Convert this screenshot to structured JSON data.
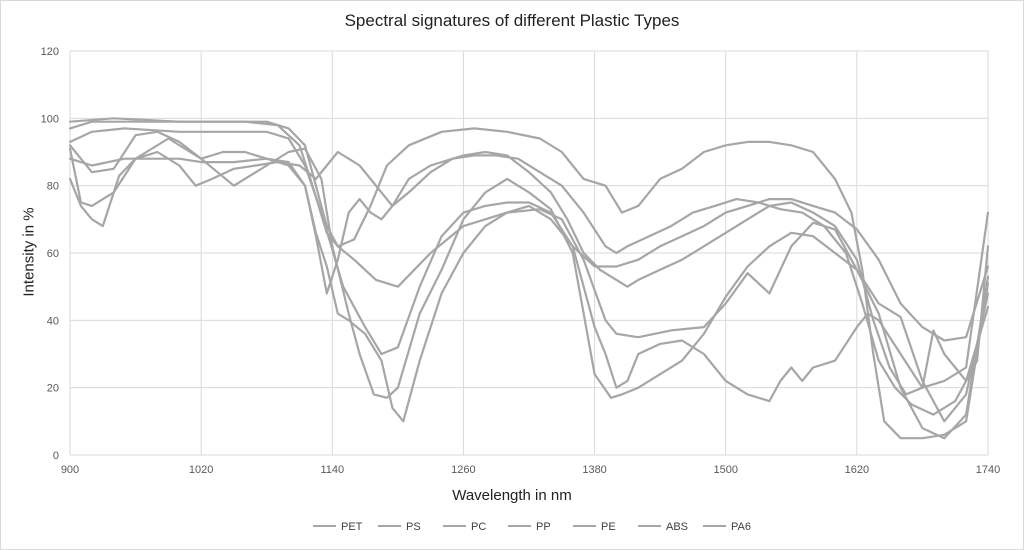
{
  "chart_data": {
    "type": "line",
    "title": "Spectral signatures of  different Plastic Types",
    "xlabel": "Wavelength in nm",
    "ylabel": "Intensity in %",
    "xlim": [
      900,
      1740
    ],
    "ylim": [
      0,
      120
    ],
    "xticks": [
      900,
      1020,
      1140,
      1260,
      1380,
      1500,
      1620,
      1740
    ],
    "yticks": [
      0,
      20,
      40,
      60,
      80,
      100,
      120
    ],
    "grid": true,
    "legend_position": "bottom",
    "line_color": "#a6a6a6",
    "series": [
      {
        "name": "PET",
        "points": [
          [
            900,
            99
          ],
          [
            940,
            100
          ],
          [
            1000,
            99
          ],
          [
            1060,
            99
          ],
          [
            1090,
            98
          ],
          [
            1110,
            92
          ],
          [
            1120,
            82
          ],
          [
            1135,
            66
          ],
          [
            1145,
            62
          ],
          [
            1160,
            58
          ],
          [
            1180,
            52
          ],
          [
            1200,
            50
          ],
          [
            1230,
            60
          ],
          [
            1260,
            68
          ],
          [
            1300,
            72
          ],
          [
            1330,
            73
          ],
          [
            1350,
            70
          ],
          [
            1370,
            58
          ],
          [
            1390,
            40
          ],
          [
            1400,
            36
          ],
          [
            1420,
            35
          ],
          [
            1450,
            37
          ],
          [
            1480,
            38
          ],
          [
            1500,
            45
          ],
          [
            1520,
            54
          ],
          [
            1540,
            48
          ],
          [
            1560,
            62
          ],
          [
            1580,
            69
          ],
          [
            1600,
            67
          ],
          [
            1620,
            55
          ],
          [
            1640,
            45
          ],
          [
            1660,
            41
          ],
          [
            1680,
            22
          ],
          [
            1700,
            10
          ],
          [
            1720,
            18
          ],
          [
            1740,
            48
          ]
        ]
      },
      {
        "name": "PS",
        "points": [
          [
            900,
            91
          ],
          [
            910,
            75
          ],
          [
            920,
            74
          ],
          [
            940,
            78
          ],
          [
            960,
            88
          ],
          [
            990,
            94
          ],
          [
            1020,
            88
          ],
          [
            1050,
            80
          ],
          [
            1080,
            86
          ],
          [
            1100,
            90
          ],
          [
            1115,
            91
          ],
          [
            1130,
            82
          ],
          [
            1140,
            62
          ],
          [
            1155,
            42
          ],
          [
            1165,
            30
          ],
          [
            1178,
            18
          ],
          [
            1190,
            17
          ],
          [
            1200,
            20
          ],
          [
            1220,
            42
          ],
          [
            1240,
            55
          ],
          [
            1260,
            70
          ],
          [
            1280,
            78
          ],
          [
            1300,
            82
          ],
          [
            1320,
            78
          ],
          [
            1340,
            73
          ],
          [
            1360,
            60
          ],
          [
            1380,
            24
          ],
          [
            1395,
            17
          ],
          [
            1405,
            18
          ],
          [
            1420,
            20
          ],
          [
            1440,
            24
          ],
          [
            1460,
            28
          ],
          [
            1480,
            36
          ],
          [
            1500,
            47
          ],
          [
            1520,
            56
          ],
          [
            1540,
            62
          ],
          [
            1560,
            66
          ],
          [
            1580,
            65
          ],
          [
            1600,
            60
          ],
          [
            1620,
            55
          ],
          [
            1640,
            42
          ],
          [
            1660,
            20
          ],
          [
            1680,
            8
          ],
          [
            1700,
            5
          ],
          [
            1720,
            12
          ],
          [
            1740,
            53
          ]
        ]
      },
      {
        "name": "PC",
        "points": [
          [
            900,
            93
          ],
          [
            920,
            96
          ],
          [
            950,
            97
          ],
          [
            1000,
            96
          ],
          [
            1040,
            96
          ],
          [
            1080,
            96
          ],
          [
            1100,
            94
          ],
          [
            1115,
            86
          ],
          [
            1130,
            72
          ],
          [
            1150,
            50
          ],
          [
            1170,
            38
          ],
          [
            1185,
            30
          ],
          [
            1200,
            32
          ],
          [
            1220,
            50
          ],
          [
            1240,
            65
          ],
          [
            1260,
            72
          ],
          [
            1280,
            74
          ],
          [
            1300,
            75
          ],
          [
            1320,
            75
          ],
          [
            1340,
            72
          ],
          [
            1360,
            62
          ],
          [
            1380,
            56
          ],
          [
            1400,
            56
          ],
          [
            1420,
            58
          ],
          [
            1440,
            62
          ],
          [
            1460,
            65
          ],
          [
            1480,
            68
          ],
          [
            1500,
            72
          ],
          [
            1520,
            74
          ],
          [
            1540,
            76
          ],
          [
            1560,
            76
          ],
          [
            1580,
            74
          ],
          [
            1600,
            72
          ],
          [
            1620,
            67
          ],
          [
            1640,
            58
          ],
          [
            1660,
            45
          ],
          [
            1680,
            38
          ],
          [
            1700,
            34
          ],
          [
            1720,
            35
          ],
          [
            1740,
            56
          ]
        ]
      },
      {
        "name": "PP",
        "points": [
          [
            900,
            97
          ],
          [
            920,
            99
          ],
          [
            960,
            99
          ],
          [
            1000,
            99
          ],
          [
            1040,
            99
          ],
          [
            1080,
            99
          ],
          [
            1100,
            97
          ],
          [
            1115,
            92
          ],
          [
            1125,
            80
          ],
          [
            1135,
            68
          ],
          [
            1145,
            62
          ],
          [
            1160,
            64
          ],
          [
            1175,
            74
          ],
          [
            1190,
            86
          ],
          [
            1210,
            92
          ],
          [
            1240,
            96
          ],
          [
            1270,
            97
          ],
          [
            1300,
            96
          ],
          [
            1330,
            94
          ],
          [
            1350,
            90
          ],
          [
            1370,
            82
          ],
          [
            1390,
            80
          ],
          [
            1405,
            72
          ],
          [
            1420,
            74
          ],
          [
            1440,
            82
          ],
          [
            1460,
            85
          ],
          [
            1480,
            90
          ],
          [
            1500,
            92
          ],
          [
            1520,
            93
          ],
          [
            1540,
            93
          ],
          [
            1560,
            92
          ],
          [
            1580,
            90
          ],
          [
            1600,
            82
          ],
          [
            1615,
            72
          ],
          [
            1625,
            55
          ],
          [
            1635,
            30
          ],
          [
            1645,
            10
          ],
          [
            1660,
            5
          ],
          [
            1680,
            5
          ],
          [
            1700,
            6
          ],
          [
            1720,
            10
          ],
          [
            1740,
            51
          ]
        ]
      },
      {
        "name": "PE",
        "points": [
          [
            900,
            88
          ],
          [
            920,
            86
          ],
          [
            950,
            88
          ],
          [
            980,
            88
          ],
          [
            1000,
            88
          ],
          [
            1020,
            87
          ],
          [
            1050,
            87
          ],
          [
            1080,
            88
          ],
          [
            1100,
            87
          ],
          [
            1115,
            80
          ],
          [
            1125,
            66
          ],
          [
            1135,
            56
          ],
          [
            1145,
            42
          ],
          [
            1155,
            40
          ],
          [
            1170,
            36
          ],
          [
            1185,
            28
          ],
          [
            1195,
            14
          ],
          [
            1205,
            10
          ],
          [
            1220,
            28
          ],
          [
            1240,
            48
          ],
          [
            1260,
            60
          ],
          [
            1280,
            68
          ],
          [
            1300,
            72
          ],
          [
            1320,
            74
          ],
          [
            1340,
            70
          ],
          [
            1360,
            62
          ],
          [
            1380,
            38
          ],
          [
            1390,
            30
          ],
          [
            1400,
            20
          ],
          [
            1410,
            22
          ],
          [
            1420,
            30
          ],
          [
            1440,
            33
          ],
          [
            1460,
            34
          ],
          [
            1480,
            30
          ],
          [
            1500,
            22
          ],
          [
            1520,
            18
          ],
          [
            1540,
            16
          ],
          [
            1550,
            22
          ],
          [
            1560,
            26
          ],
          [
            1570,
            22
          ],
          [
            1580,
            26
          ],
          [
            1600,
            28
          ],
          [
            1620,
            38
          ],
          [
            1630,
            42
          ],
          [
            1640,
            40
          ],
          [
            1660,
            30
          ],
          [
            1680,
            20
          ],
          [
            1690,
            37
          ],
          [
            1700,
            30
          ],
          [
            1720,
            22
          ],
          [
            1740,
            44
          ]
        ]
      },
      {
        "name": "ABS",
        "points": [
          [
            900,
            82
          ],
          [
            910,
            74
          ],
          [
            920,
            70
          ],
          [
            930,
            68
          ],
          [
            945,
            83
          ],
          [
            960,
            88
          ],
          [
            980,
            90
          ],
          [
            1000,
            86
          ],
          [
            1015,
            80
          ],
          [
            1030,
            82
          ],
          [
            1050,
            85
          ],
          [
            1070,
            86
          ],
          [
            1090,
            87
          ],
          [
            1110,
            86
          ],
          [
            1125,
            82
          ],
          [
            1135,
            86
          ],
          [
            1145,
            90
          ],
          [
            1155,
            88
          ],
          [
            1165,
            86
          ],
          [
            1180,
            80
          ],
          [
            1195,
            74
          ],
          [
            1210,
            78
          ],
          [
            1230,
            84
          ],
          [
            1250,
            88
          ],
          [
            1270,
            89
          ],
          [
            1290,
            89
          ],
          [
            1310,
            88
          ],
          [
            1330,
            84
          ],
          [
            1350,
            80
          ],
          [
            1370,
            72
          ],
          [
            1390,
            62
          ],
          [
            1400,
            60
          ],
          [
            1410,
            62
          ],
          [
            1430,
            65
          ],
          [
            1450,
            68
          ],
          [
            1470,
            72
          ],
          [
            1490,
            74
          ],
          [
            1510,
            76
          ],
          [
            1530,
            75
          ],
          [
            1550,
            73
          ],
          [
            1570,
            72
          ],
          [
            1590,
            68
          ],
          [
            1610,
            60
          ],
          [
            1625,
            45
          ],
          [
            1640,
            28
          ],
          [
            1655,
            20
          ],
          [
            1670,
            15
          ],
          [
            1690,
            12
          ],
          [
            1710,
            16
          ],
          [
            1730,
            28
          ],
          [
            1740,
            62
          ]
        ]
      },
      {
        "name": "PA6",
        "points": [
          [
            900,
            92
          ],
          [
            910,
            88
          ],
          [
            920,
            84
          ],
          [
            940,
            85
          ],
          [
            960,
            95
          ],
          [
            980,
            96
          ],
          [
            1000,
            93
          ],
          [
            1020,
            88
          ],
          [
            1040,
            90
          ],
          [
            1060,
            90
          ],
          [
            1080,
            88
          ],
          [
            1100,
            86
          ],
          [
            1115,
            80
          ],
          [
            1125,
            65
          ],
          [
            1135,
            48
          ],
          [
            1145,
            58
          ],
          [
            1155,
            72
          ],
          [
            1165,
            76
          ],
          [
            1175,
            72
          ],
          [
            1185,
            70
          ],
          [
            1195,
            74
          ],
          [
            1210,
            82
          ],
          [
            1230,
            86
          ],
          [
            1260,
            89
          ],
          [
            1280,
            90
          ],
          [
            1300,
            89
          ],
          [
            1320,
            84
          ],
          [
            1340,
            78
          ],
          [
            1355,
            70
          ],
          [
            1370,
            60
          ],
          [
            1385,
            55
          ],
          [
            1400,
            52
          ],
          [
            1410,
            50
          ],
          [
            1420,
            52
          ],
          [
            1440,
            55
          ],
          [
            1460,
            58
          ],
          [
            1480,
            62
          ],
          [
            1500,
            66
          ],
          [
            1520,
            70
          ],
          [
            1540,
            74
          ],
          [
            1560,
            75
          ],
          [
            1580,
            72
          ],
          [
            1600,
            68
          ],
          [
            1620,
            58
          ],
          [
            1635,
            40
          ],
          [
            1650,
            26
          ],
          [
            1665,
            18
          ],
          [
            1680,
            20
          ],
          [
            1700,
            22
          ],
          [
            1720,
            26
          ],
          [
            1740,
            72
          ]
        ]
      }
    ]
  }
}
